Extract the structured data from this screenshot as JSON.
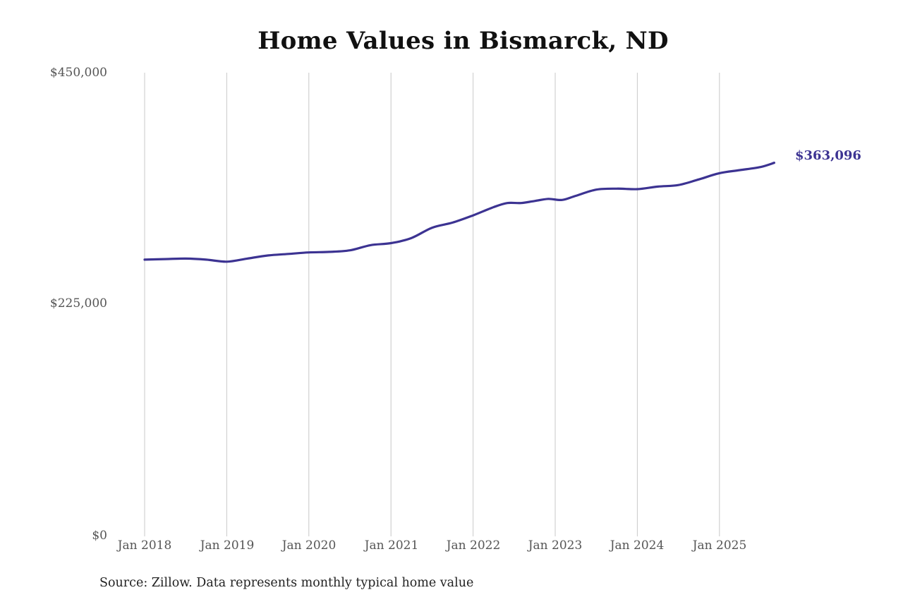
{
  "title": "Home Values in Bismarck, ND",
  "source_note": "Source: Zillow. Data represents monthly typical home value",
  "end_label": "$363,096",
  "colors": {
    "line": "#3c3392",
    "gridline": "#c8c8c8",
    "title": "#111111",
    "axis_text": "#555555"
  },
  "y_axis": {
    "ticks": [
      {
        "label": "$450,000",
        "value": 450000
      },
      {
        "label": "$225,000",
        "value": 225000
      },
      {
        "label": "$0",
        "value": 0
      }
    ]
  },
  "x_axis": {
    "ticks": [
      {
        "label": "Jan 2018"
      },
      {
        "label": "Jan 2019"
      },
      {
        "label": "Jan 2020"
      },
      {
        "label": "Jan 2021"
      },
      {
        "label": "Jan 2022"
      },
      {
        "label": "Jan 2023"
      },
      {
        "label": "Jan 2024"
      },
      {
        "label": "Jan 2025"
      }
    ]
  },
  "chart_data": {
    "type": "line",
    "title": "Home Values in Bismarck, ND",
    "xlabel": "",
    "ylabel": "",
    "ylim": [
      0,
      450000
    ],
    "grid": {
      "vertical": true,
      "horizontal": false
    },
    "legend": "none",
    "annotations": [
      {
        "text": "$363,096",
        "position": "end of series"
      }
    ],
    "x_tick_labels": [
      "Jan 2018",
      "Jan 2019",
      "Jan 2020",
      "Jan 2021",
      "Jan 2022",
      "Jan 2023",
      "Jan 2024",
      "Jan 2025"
    ],
    "y_tick_labels": [
      "$0",
      "$225,000",
      "$450,000"
    ],
    "series": [
      {
        "name": "Typical home value",
        "x": [
          "Jan 2018",
          "Apr 2018",
          "Jul 2018",
          "Oct 2018",
          "Jan 2019",
          "Apr 2019",
          "Jul 2019",
          "Oct 2019",
          "Jan 2020",
          "Apr 2020",
          "Jul 2020",
          "Oct 2020",
          "Jan 2021",
          "Apr 2021",
          "Jul 2021",
          "Oct 2021",
          "Jan 2022",
          "Apr 2022",
          "Jun 2022",
          "Aug 2022",
          "Oct 2022",
          "Dec 2022",
          "Feb 2023",
          "Apr 2023",
          "Jul 2023",
          "Oct 2023",
          "Jan 2024",
          "Apr 2024",
          "Jul 2024",
          "Oct 2024",
          "Jan 2025",
          "Apr 2025",
          "Jul 2025",
          "Sep 2025"
        ],
        "values": [
          269000,
          269500,
          270000,
          269000,
          267000,
          270000,
          273000,
          274500,
          276000,
          276500,
          278000,
          283000,
          285000,
          290000,
          300000,
          305000,
          312000,
          320000,
          324000,
          324000,
          326000,
          328000,
          327000,
          331000,
          337000,
          338000,
          337500,
          340000,
          341500,
          347000,
          353000,
          356000,
          359000,
          363096
        ]
      }
    ]
  }
}
